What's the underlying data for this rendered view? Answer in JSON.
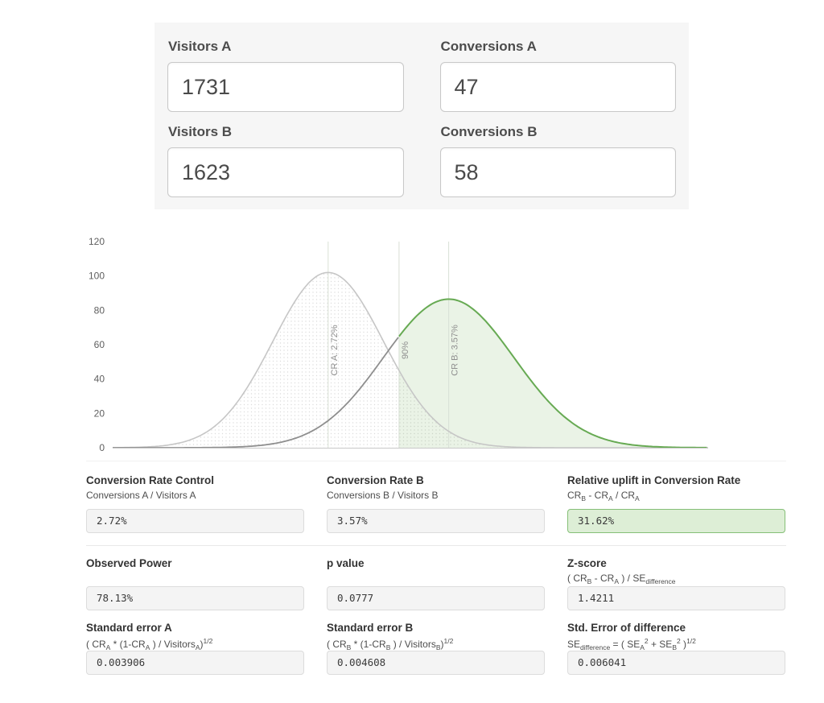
{
  "inputs": {
    "visitors_a": {
      "label": "Visitors A",
      "value": "1731"
    },
    "conversions_a": {
      "label": "Conversions A",
      "value": "47"
    },
    "visitors_b": {
      "label": "Visitors B",
      "value": "1623"
    },
    "conversions_b": {
      "label": "Conversions B",
      "value": "58"
    }
  },
  "chart_data": {
    "type": "area",
    "title": "",
    "description": "Normal sampling distributions of conversion rate for control A and variant B with 90% significance threshold",
    "x_axis": {
      "min": 1.2,
      "max": 5.4,
      "unit": "% conversion rate",
      "tick_labels_visible": false
    },
    "y_axis": {
      "min": 0,
      "max": 120,
      "ticks": [
        0,
        20,
        40,
        60,
        80,
        100,
        120
      ]
    },
    "series": [
      {
        "name": "CR A",
        "shape": "normal-pdf",
        "mean": 2.72,
        "se": 0.3906,
        "peak": 102,
        "stroke": "#c6c6c6",
        "fill": "dot-pattern"
      },
      {
        "name": "CR B",
        "shape": "normal-pdf",
        "mean": 3.57,
        "se": 0.4608,
        "peak": 86.5,
        "stroke": "#67aa53",
        "stroke_below_threshold": "#8e8e8e",
        "fill": "rgba(106,168,79,0.14)"
      }
    ],
    "threshold": {
      "x": 3.22,
      "label": "90%"
    },
    "markers": [
      {
        "label": "CR A: 2.72%",
        "x": 2.72
      },
      {
        "label": "90%",
        "x": 3.22
      },
      {
        "label": "CR B: 3.57%",
        "x": 3.57
      }
    ],
    "colors": {
      "marker_line": "#d9e0d6",
      "axis": "#c9c9c9",
      "tick_text": "#5f5f5f",
      "marker_text": "#8f8f8f"
    }
  },
  "results": {
    "rows": [
      {
        "cells": [
          {
            "title": "Conversion Rate Control",
            "formula": [
              {
                "t": "Conversions A / Visitors A"
              }
            ],
            "value": "2.72%",
            "highlight": false
          },
          {
            "title": "Conversion Rate B",
            "formula": [
              {
                "t": "Conversions B / Visitors B"
              }
            ],
            "value": "3.57%",
            "highlight": false
          },
          {
            "title": "Relative uplift in Conversion Rate",
            "formula": [
              {
                "t": "CR"
              },
              {
                "t": "B",
                "s": "sub"
              },
              {
                "t": " - CR"
              },
              {
                "t": "A",
                "s": "sub"
              },
              {
                "t": " / CR"
              },
              {
                "t": "A",
                "s": "sub"
              }
            ],
            "value": "31.62%",
            "highlight": true
          }
        ]
      },
      {
        "cells": [
          {
            "title": "Observed Power",
            "formula": [],
            "value": "78.13%",
            "highlight": false
          },
          {
            "title": "p value",
            "formula": [],
            "value": "0.0777",
            "highlight": false
          },
          {
            "title": "Z-score",
            "formula": [
              {
                "t": "( CR"
              },
              {
                "t": "B",
                "s": "sub"
              },
              {
                "t": " - CR"
              },
              {
                "t": "A",
                "s": "sub"
              },
              {
                "t": " ) / SE"
              },
              {
                "t": "difference",
                "s": "sub"
              }
            ],
            "value": "1.4211",
            "highlight": false
          }
        ]
      },
      {
        "cells": [
          {
            "title": "Standard error A",
            "formula": [
              {
                "t": "( CR"
              },
              {
                "t": "A",
                "s": "sub"
              },
              {
                "t": " * (1-CR"
              },
              {
                "t": "A",
                "s": "sub"
              },
              {
                "t": " ) / Visitors"
              },
              {
                "t": "A",
                "s": "sub"
              },
              {
                "t": ")"
              },
              {
                "t": "1/2",
                "s": "sup"
              }
            ],
            "value": "0.003906",
            "highlight": false
          },
          {
            "title": "Standard error B",
            "formula": [
              {
                "t": "( CR"
              },
              {
                "t": "B",
                "s": "sub"
              },
              {
                "t": " * (1-CR"
              },
              {
                "t": "B",
                "s": "sub"
              },
              {
                "t": " ) / Visitors"
              },
              {
                "t": "B",
                "s": "sub"
              },
              {
                "t": ")"
              },
              {
                "t": "1/2",
                "s": "sup"
              }
            ],
            "value": "0.004608",
            "highlight": false
          },
          {
            "title": "Std. Error of difference",
            "formula": [
              {
                "t": "SE"
              },
              {
                "t": "difference",
                "s": "sub"
              },
              {
                "t": " = ( SE"
              },
              {
                "t": "A",
                "s": "sub"
              },
              {
                "t": "2",
                "s": "sup"
              },
              {
                "t": " + SE"
              },
              {
                "t": "B",
                "s": "sub"
              },
              {
                "t": "2",
                "s": "sup"
              },
              {
                "t": " )"
              },
              {
                "t": "1/2",
                "s": "sup"
              }
            ],
            "value": "0.006041",
            "highlight": false
          }
        ]
      }
    ]
  }
}
